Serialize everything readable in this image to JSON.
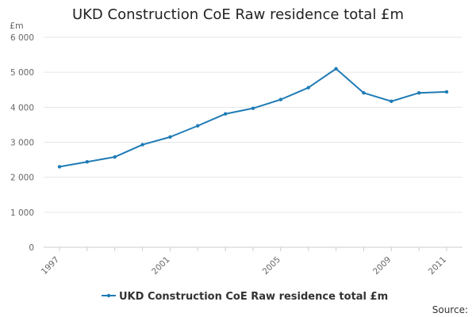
{
  "chart_data": {
    "type": "line",
    "title": "UKD Construction CoE Raw residence total £m",
    "ylabel": "£m",
    "xlabel": "",
    "source_label": "Source:",
    "x": [
      1997,
      1998,
      1999,
      2000,
      2001,
      2002,
      2003,
      2004,
      2005,
      2006,
      2007,
      2008,
      2009,
      2010,
      2011
    ],
    "x_tick_labels": [
      "1997",
      "2001",
      "2005",
      "2009",
      "2011"
    ],
    "ylim": [
      0,
      6000
    ],
    "y_ticks": [
      0,
      1000,
      2000,
      3000,
      4000,
      5000,
      6000
    ],
    "y_tick_labels": [
      "0",
      "1 000",
      "2 000",
      "3 000",
      "4 000",
      "5 000",
      "6 000"
    ],
    "grid": true,
    "legend_position": "bottom",
    "series": [
      {
        "name": "UKD Construction CoE Raw residence total £m",
        "color": "#1f7bb6",
        "values": [
          2300,
          2440,
          2580,
          2930,
          3150,
          3470,
          3810,
          3970,
          4220,
          4560,
          5100,
          4410,
          4170,
          4410,
          4440
        ]
      }
    ]
  }
}
